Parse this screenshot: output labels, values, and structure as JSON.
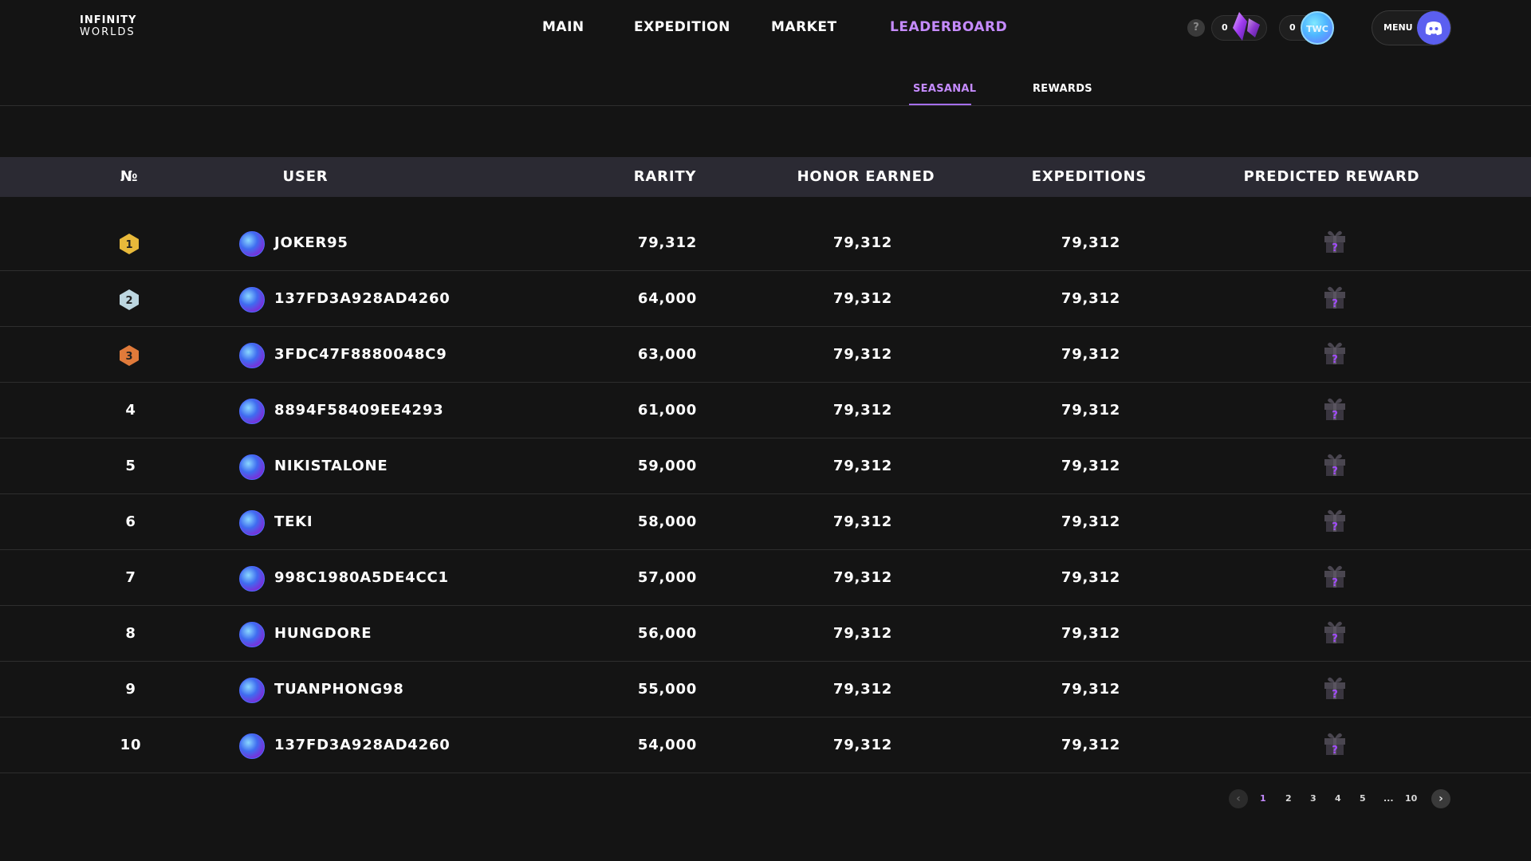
{
  "brand": {
    "line1": "INFINITY",
    "line2": "WORLDS"
  },
  "nav": [
    {
      "label": "MAIN",
      "active": false
    },
    {
      "label": "EXPEDITION",
      "active": false
    },
    {
      "label": "MARKET",
      "active": false
    },
    {
      "label": "LEADERBOARD",
      "active": true
    }
  ],
  "header": {
    "help_label": "?",
    "crystal_count": "0",
    "coin_count": "0",
    "coin_label": "TWC",
    "menu_label": "MENU"
  },
  "subtabs": [
    {
      "label": "SEASANAL",
      "active": true
    },
    {
      "label": "REWARDS",
      "active": false
    }
  ],
  "table": {
    "columns": [
      "№",
      "USER",
      "RARITY",
      "HONOR EARNED",
      "EXPEDITIONS",
      "PREDICTED REWARD"
    ],
    "rows": [
      {
        "rank": "1",
        "user": "JOKER95",
        "rarity": "79,312",
        "honor": "79,312",
        "expeditions": "79,312"
      },
      {
        "rank": "2",
        "user": "137FD3A928AD4260",
        "rarity": "64,000",
        "honor": "79,312",
        "expeditions": "79,312"
      },
      {
        "rank": "3",
        "user": "3FDC47F8880048C9",
        "rarity": "63,000",
        "honor": "79,312",
        "expeditions": "79,312"
      },
      {
        "rank": "4",
        "user": "8894F58409EE4293",
        "rarity": "61,000",
        "honor": "79,312",
        "expeditions": "79,312"
      },
      {
        "rank": "5",
        "user": "NIKISTALONE",
        "rarity": "59,000",
        "honor": "79,312",
        "expeditions": "79,312"
      },
      {
        "rank": "6",
        "user": "TEKI",
        "rarity": "58,000",
        "honor": "79,312",
        "expeditions": "79,312"
      },
      {
        "rank": "7",
        "user": "998C1980A5DE4CC1",
        "rarity": "57,000",
        "honor": "79,312",
        "expeditions": "79,312"
      },
      {
        "rank": "8",
        "user": "HUNGDORE",
        "rarity": "56,000",
        "honor": "79,312",
        "expeditions": "79,312"
      },
      {
        "rank": "9",
        "user": "TUANPHONG98",
        "rarity": "55,000",
        "honor": "79,312",
        "expeditions": "79,312"
      },
      {
        "rank": "10",
        "user": "137FD3A928AD4260",
        "rarity": "54,000",
        "honor": "79,312",
        "expeditions": "79,312"
      }
    ]
  },
  "pagination": {
    "pages": [
      "1",
      "2",
      "3",
      "4",
      "5",
      "...",
      "10"
    ],
    "current": "1"
  },
  "colors": {
    "accent": "#c58bff",
    "gold": "#e8b93a",
    "silver": "#bcd6e0",
    "bronze": "#e07a3a",
    "header_bg": "#2b2a33",
    "page_bg": "#141414"
  },
  "icons": {
    "help": "question-icon",
    "crystal": "crystal-icon",
    "coin": "twc-coin-icon",
    "discord": "discord-icon",
    "avatar": "user-avatar",
    "reward": "gift-box-icon",
    "prev": "chevron-left-icon",
    "next": "chevron-right-icon"
  }
}
